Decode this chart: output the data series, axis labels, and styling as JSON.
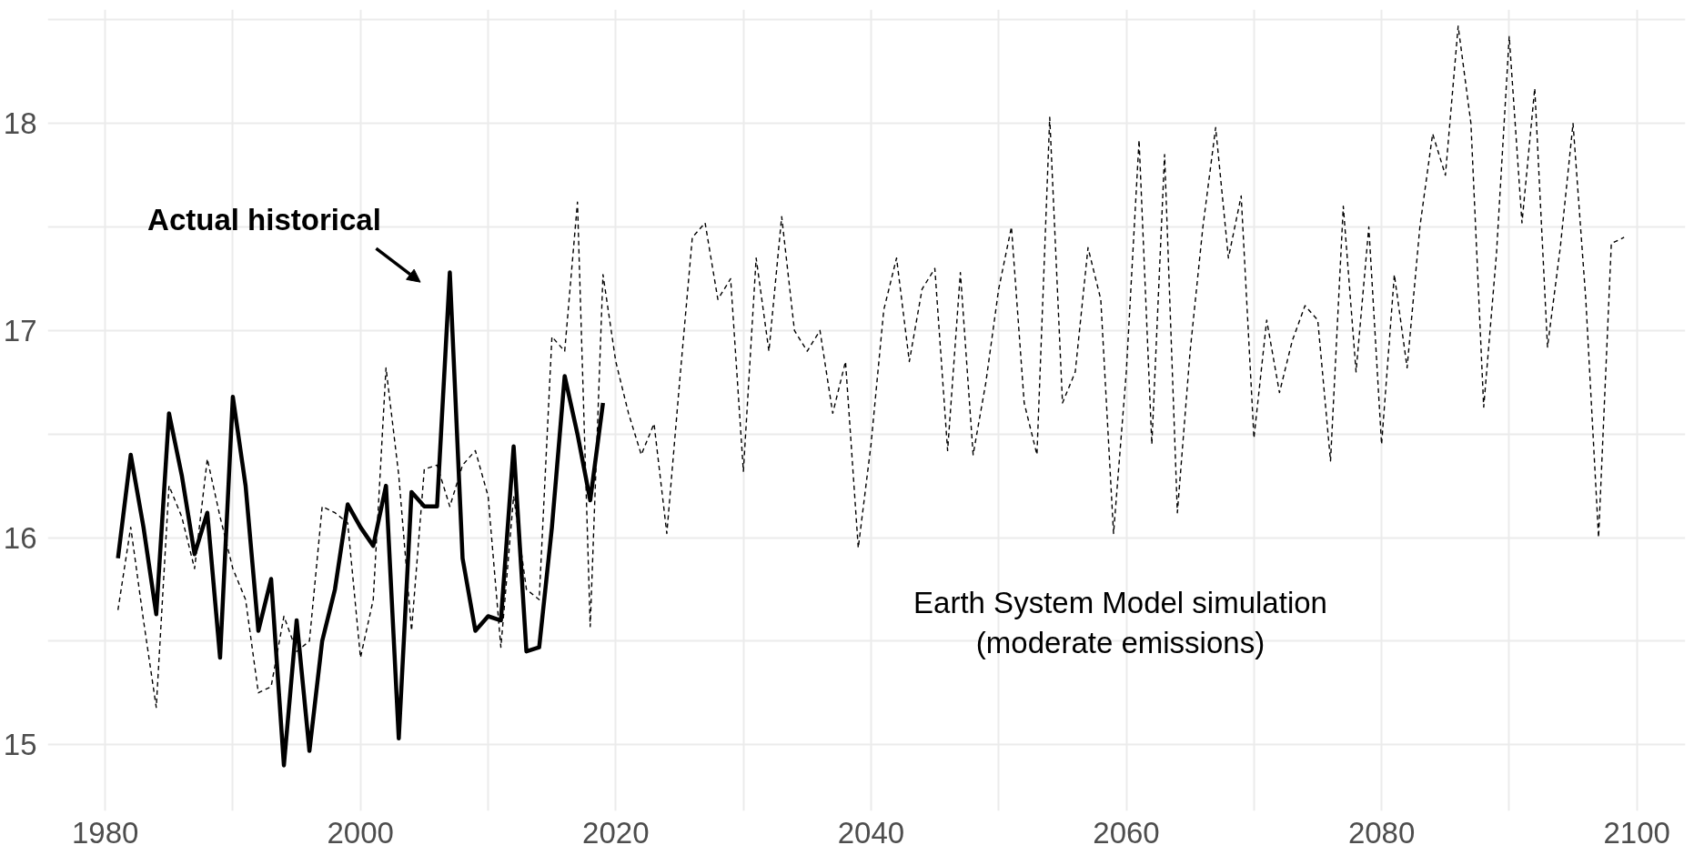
{
  "chart_data": {
    "type": "line",
    "x": [
      1981,
      1982,
      1983,
      1984,
      1985,
      1986,
      1987,
      1988,
      1989,
      1990,
      1991,
      1992,
      1993,
      1994,
      1995,
      1996,
      1997,
      1998,
      1999,
      2000,
      2001,
      2002,
      2003,
      2004,
      2005,
      2006,
      2007,
      2008,
      2009,
      2010,
      2011,
      2012,
      2013,
      2014,
      2015,
      2016,
      2017,
      2018,
      2019,
      2020,
      2021,
      2022,
      2023,
      2024,
      2025,
      2026,
      2027,
      2028,
      2029,
      2030,
      2031,
      2032,
      2033,
      2034,
      2035,
      2036,
      2037,
      2038,
      2039,
      2040,
      2041,
      2042,
      2043,
      2044,
      2045,
      2046,
      2047,
      2048,
      2049,
      2050,
      2051,
      2052,
      2053,
      2054,
      2055,
      2056,
      2057,
      2058,
      2059,
      2060,
      2061,
      2062,
      2063,
      2064,
      2065,
      2066,
      2067,
      2068,
      2069,
      2070,
      2071,
      2072,
      2073,
      2074,
      2075,
      2076,
      2077,
      2078,
      2079,
      2080,
      2081,
      2082,
      2083,
      2084,
      2085,
      2086,
      2087,
      2088,
      2089,
      2090,
      2091,
      2092,
      2093,
      2094,
      2095,
      2096,
      2097,
      2098,
      2099
    ],
    "series": [
      {
        "name": "Earth System Model simulation\n(moderate emissions)",
        "color": "#000000",
        "line_style": "dashed",
        "values": [
          15.65,
          16.05,
          15.6,
          15.18,
          16.25,
          16.1,
          15.85,
          16.38,
          16.1,
          15.85,
          15.7,
          15.25,
          15.28,
          15.62,
          15.45,
          15.5,
          16.15,
          16.12,
          16.07,
          15.42,
          15.7,
          16.82,
          16.3,
          15.55,
          16.33,
          16.35,
          16.15,
          16.35,
          16.42,
          16.2,
          15.47,
          16.2,
          15.75,
          15.7,
          16.97,
          16.9,
          17.62,
          15.57,
          17.27,
          16.85,
          16.6,
          16.4,
          16.55,
          16.02,
          16.75,
          17.45,
          17.52,
          17.15,
          17.25,
          16.32,
          17.35,
          16.9,
          17.55,
          17.0,
          16.9,
          17.0,
          16.6,
          16.85,
          15.95,
          16.45,
          17.1,
          17.35,
          16.85,
          17.2,
          17.3,
          16.42,
          17.28,
          16.4,
          16.75,
          17.2,
          17.5,
          16.65,
          16.4,
          18.03,
          16.65,
          16.8,
          17.4,
          17.15,
          16.02,
          16.8,
          17.92,
          16.45,
          17.85,
          16.12,
          16.9,
          17.5,
          17.98,
          17.35,
          17.65,
          16.48,
          17.05,
          16.7,
          16.95,
          17.12,
          17.05,
          16.37,
          17.6,
          16.8,
          17.5,
          16.45,
          17.27,
          16.82,
          17.5,
          17.95,
          17.75,
          18.47,
          18.0,
          16.63,
          17.37,
          18.42,
          17.52,
          18.17,
          16.92,
          17.4,
          18.0,
          17.15,
          16.0,
          17.42,
          17.45
        ]
      },
      {
        "name": "Actual historical",
        "color": "#000000",
        "line_style": "solid",
        "values": [
          15.9,
          16.4,
          16.05,
          15.63,
          16.6,
          16.3,
          15.92,
          16.12,
          15.42,
          16.68,
          16.25,
          15.55,
          15.8,
          14.9,
          15.6,
          14.97,
          15.5,
          15.75,
          16.16,
          16.05,
          15.96,
          16.25,
          15.03,
          16.22,
          16.15,
          16.15,
          17.28,
          15.9,
          15.55,
          15.62,
          15.6,
          16.44,
          15.45,
          15.47,
          16.05,
          16.78,
          16.5,
          16.18,
          16.65,
          null,
          null,
          null,
          null,
          null,
          null,
          null,
          null,
          null,
          null,
          null,
          null,
          null,
          null,
          null,
          null,
          null,
          null,
          null,
          null,
          null,
          null,
          null,
          null,
          null,
          null,
          null,
          null,
          null,
          null,
          null,
          null,
          null,
          null,
          null,
          null,
          null,
          null,
          null,
          null,
          null,
          null,
          null,
          null,
          null,
          null,
          null,
          null,
          null,
          null,
          null,
          null,
          null,
          null,
          null,
          null,
          null,
          null,
          null,
          null,
          null,
          null,
          null,
          null,
          null,
          null,
          null,
          null,
          null,
          null,
          null,
          null,
          null,
          null,
          null,
          null,
          null,
          null,
          null,
          null
        ]
      }
    ],
    "xlim": [
      1975.5,
      2103.8
    ],
    "ylim": [
      14.68,
      18.55
    ],
    "xticks": [
      1980,
      {
        "value": 1990,
        "label": null
      },
      2000,
      {
        "value": 2010,
        "label": null
      },
      2020,
      {
        "value": 2030,
        "label": null
      },
      2040,
      {
        "value": 2050,
        "label": null
      },
      2060,
      {
        "value": 2070,
        "label": null
      },
      2080,
      {
        "value": 2090,
        "label": null
      },
      2100
    ],
    "yticks": [
      15,
      {
        "value": 15.5,
        "label": null
      },
      16,
      {
        "value": 16.5,
        "label": null
      },
      17,
      {
        "value": 17.5,
        "label": null
      },
      18,
      {
        "value": 18.5,
        "label": null
      }
    ],
    "grid": true,
    "marker": "none"
  }
}
